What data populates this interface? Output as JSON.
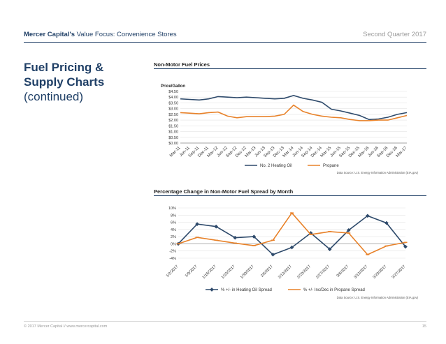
{
  "header": {
    "company": "Mercer Capital's",
    "publication": " Value Focus: Convenience Stores",
    "period": "Second Quarter 2017"
  },
  "side_title": {
    "line1": "Fuel Pricing &",
    "line2": "Supply Charts",
    "line3": "(continued)"
  },
  "footer": {
    "copyright": "© 2017 Mercer Capital // www.mercercapital.com",
    "page_number": "15"
  },
  "colors": {
    "navy": "#1f3f66",
    "series_dark": "#2e4a6b",
    "series_orange": "#e8822a"
  },
  "chart_data": [
    {
      "type": "line",
      "title": "Non-Motor Fuel Prices",
      "ylabel": "Price/Gallon",
      "ylim": [
        0,
        4.5
      ],
      "yticks": [
        "$0.00",
        "$0.50",
        "$1.00",
        "$1.50",
        "$2.00",
        "$2.50",
        "$3.00",
        "$3.50",
        "$4.00",
        "$4.50"
      ],
      "categories": [
        "Mar-11",
        "Jun-11",
        "Sep-11",
        "Dec-11",
        "Mar-12",
        "Jun-12",
        "Sep-12",
        "Dec-12",
        "Mar-13",
        "Jun-13",
        "Sep-13",
        "Dec-13",
        "Mar-14",
        "Jun-14",
        "Sep-14",
        "Dec-14",
        "Mar-15",
        "Jun-15",
        "Sep-15",
        "Dec-15",
        "Mar-16",
        "Jun-16",
        "Sep-16",
        "Dec-16",
        "Mar-17"
      ],
      "series": [
        {
          "name": "No. 2 Heating Oil",
          "values": [
            3.85,
            3.8,
            3.75,
            3.85,
            4.05,
            4.0,
            3.95,
            4.0,
            3.95,
            3.9,
            3.85,
            3.9,
            4.15,
            3.9,
            3.75,
            3.55,
            2.95,
            2.8,
            2.6,
            2.4,
            2.05,
            2.1,
            2.25,
            2.5,
            2.65
          ]
        },
        {
          "name": "Propane",
          "values": [
            2.65,
            2.6,
            2.55,
            2.65,
            2.7,
            2.35,
            2.2,
            2.3,
            2.3,
            2.3,
            2.35,
            2.5,
            3.3,
            2.75,
            2.5,
            2.35,
            2.25,
            2.2,
            2.05,
            1.95,
            1.95,
            2.0,
            2.0,
            2.2,
            2.4
          ]
        }
      ],
      "legend": [
        "No. 2 Heating Oil",
        "Propane"
      ],
      "source": "Data Source: U.S. Energy Information Administration (EIA.gov)"
    },
    {
      "type": "line",
      "title": "Percentage Change in Non-Motor Fuel Spread by Month",
      "ylim": [
        -4,
        10
      ],
      "yticks": [
        "-4%",
        "-2%",
        "0%",
        "2%",
        "4%",
        "6%",
        "8%",
        "10%"
      ],
      "categories": [
        "1/2/2017",
        "1/9/2017",
        "1/16/2017",
        "1/23/2017",
        "1/30/2017",
        "2/6/2017",
        "2/13/2017",
        "2/20/2017",
        "2/27/2017",
        "3/6/2017",
        "3/13/2017",
        "3/20/2017",
        "3/27/2017"
      ],
      "series": [
        {
          "name": "% +/- in Heating Oil Spread",
          "values": [
            0.0,
            5.5,
            4.8,
            1.7,
            2.0,
            -3.0,
            -1.0,
            3.0,
            -1.5,
            3.8,
            7.8,
            5.8,
            -0.8
          ]
        },
        {
          "name": "% +/- Inc/Dec in Propane Spread",
          "values": [
            0.0,
            1.8,
            1.0,
            0.2,
            -0.5,
            1.0,
            8.6,
            2.6,
            3.4,
            3.0,
            -3.0,
            -0.6,
            0.4
          ]
        }
      ],
      "legend": [
        "% +/- in Heating Oil Spread",
        "% +/- Inc/Dec in Propane Spread"
      ],
      "source": "Data Source: U.S. Energy Information Administration (EIA.gov)"
    }
  ]
}
